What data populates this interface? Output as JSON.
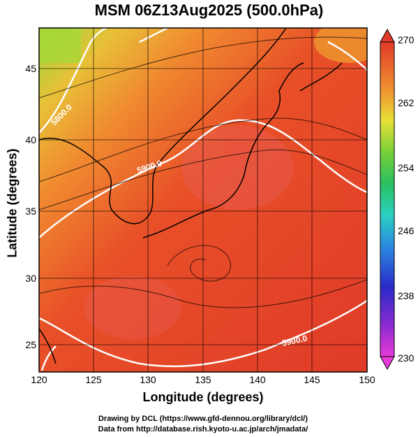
{
  "title": "MSM 06Z13Aug2025 (500.0hPa)",
  "axes": {
    "xlabel": "Longitude (degrees)",
    "ylabel": "Latitude  (degrees)",
    "xticks": [
      "120",
      "125",
      "130",
      "135",
      "140",
      "145",
      "150"
    ],
    "yticks": [
      "25",
      "30",
      "35",
      "40",
      "45"
    ]
  },
  "colorbar": {
    "ticks": [
      "230",
      "238",
      "246",
      "254",
      "262",
      "270"
    ],
    "colors": [
      "#e83ad8",
      "#8a2ad0",
      "#2a2ac8",
      "#2a6ae0",
      "#2aa8e8",
      "#2ad0c0",
      "#2ac080",
      "#38c838",
      "#98d838",
      "#e8e038",
      "#f0b030",
      "#f08030",
      "#e85028",
      "#e03a28"
    ]
  },
  "contours": [
    {
      "label": "5800.0"
    },
    {
      "label": "5900.0"
    },
    {
      "label": "5900.0"
    }
  ],
  "credits": [
    "Drawing by DCL (https://www.gfd-dennou.org/library/dcl/)",
    "Data from http://database.rish.kyoto-u.ac.jp/arch/jmadata/"
  ]
}
